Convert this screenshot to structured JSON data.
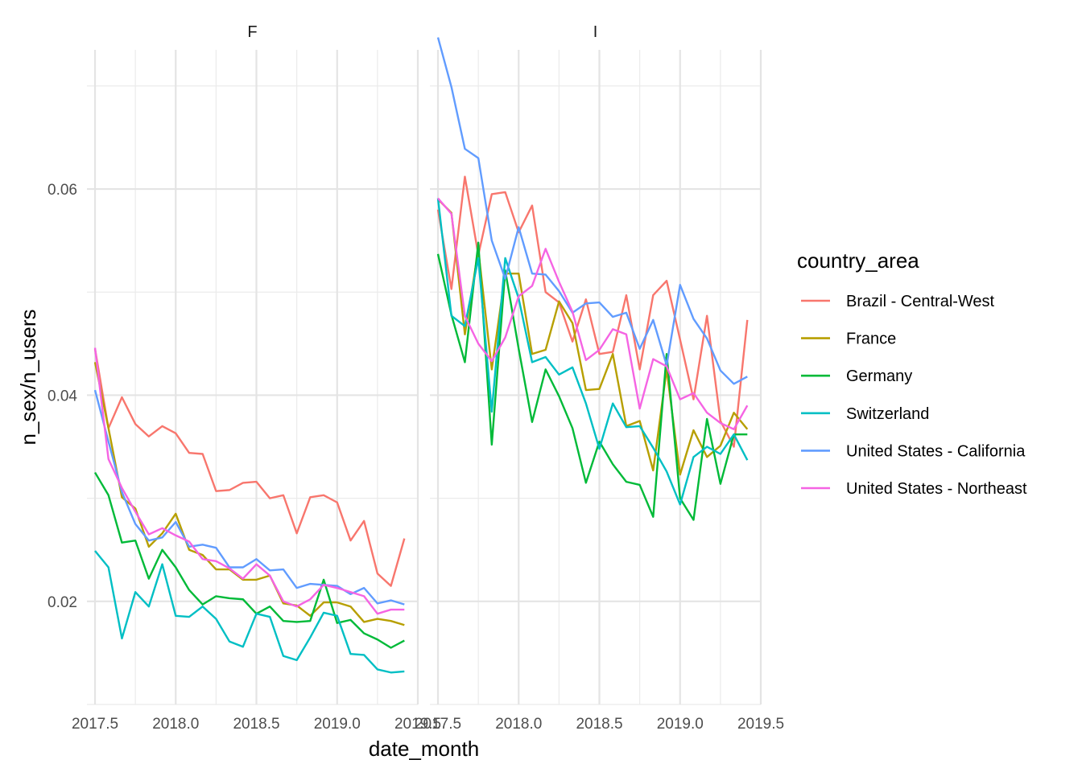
{
  "chart_data": {
    "type": "line",
    "xlabel": "date_month",
    "ylabel": "n_sex/n_users",
    "xlim": [
      2017.45,
      2019.5
    ],
    "ylim": [
      0.01,
      0.0735
    ],
    "x_ticks": [
      2017.5,
      2018.0,
      2018.5,
      2019.0,
      2019.5
    ],
    "x_tick_labels": [
      "2017.5",
      "2018.0",
      "2018.5",
      "2019.0",
      "2019.5"
    ],
    "y_ticks": [
      0.02,
      0.04,
      0.06
    ],
    "y_tick_labels": [
      "0.02",
      "0.04",
      "0.06"
    ],
    "grid": true,
    "legend": {
      "title": "country_area",
      "placement": "right"
    },
    "x": [
      2017.5,
      2017.5833,
      2017.6667,
      2017.75,
      2017.8333,
      2017.9167,
      2018.0,
      2018.0833,
      2018.1667,
      2018.25,
      2018.3333,
      2018.4167,
      2018.5,
      2018.5833,
      2018.6667,
      2018.75,
      2018.8333,
      2018.9167,
      2019.0,
      2019.0833,
      2019.1667,
      2019.25,
      2019.3333,
      2019.4167
    ],
    "facets": [
      {
        "label": "F",
        "series": [
          {
            "name": "Brazil - Central-West",
            "color": "#F8766D",
            "values": [
              0.0445,
              0.0368,
              0.0398,
              0.0372,
              0.036,
              0.037,
              0.0363,
              0.0344,
              0.0343,
              0.0307,
              0.0308,
              0.0315,
              0.0316,
              0.03,
              0.0303,
              0.0266,
              0.0301,
              0.0303,
              0.0296,
              0.0259,
              0.0278,
              0.0227,
              0.0215,
              0.0261
            ]
          },
          {
            "name": "France",
            "color": "#B79F00",
            "values": [
              0.0432,
              0.0368,
              0.0301,
              0.029,
              0.0253,
              0.0266,
              0.0285,
              0.025,
              0.0245,
              0.0231,
              0.0231,
              0.0221,
              0.0221,
              0.0225,
              0.0198,
              0.0196,
              0.0186,
              0.0199,
              0.0199,
              0.0195,
              0.018,
              0.0183,
              0.0181,
              0.0177
            ]
          },
          {
            "name": "Germany",
            "color": "#00BA38",
            "values": [
              0.0325,
              0.0303,
              0.0257,
              0.0259,
              0.0222,
              0.025,
              0.0233,
              0.0211,
              0.0197,
              0.0205,
              0.0203,
              0.0202,
              0.0188,
              0.0195,
              0.0181,
              0.018,
              0.0181,
              0.0221,
              0.0179,
              0.0182,
              0.0169,
              0.0163,
              0.0155,
              0.0162
            ]
          },
          {
            "name": "Switzerland",
            "color": "#00BFC4",
            "values": [
              0.0249,
              0.0233,
              0.0164,
              0.0209,
              0.0195,
              0.0236,
              0.0186,
              0.0185,
              0.0195,
              0.0183,
              0.0161,
              0.0156,
              0.0188,
              0.0185,
              0.0147,
              0.0143,
              0.0165,
              0.0189,
              0.0186,
              0.0149,
              0.0148,
              0.0134,
              0.0131,
              0.0132
            ]
          },
          {
            "name": "United States - California",
            "color": "#619CFF",
            "values": [
              0.0405,
              0.0355,
              0.0306,
              0.0275,
              0.0259,
              0.0262,
              0.0277,
              0.0253,
              0.0255,
              0.0252,
              0.0233,
              0.0233,
              0.0241,
              0.023,
              0.0231,
              0.0213,
              0.0217,
              0.0216,
              0.0215,
              0.0207,
              0.0213,
              0.0198,
              0.0201,
              0.0197
            ]
          },
          {
            "name": "United States - Northeast",
            "color": "#F564E3",
            "values": [
              0.0446,
              0.0338,
              0.031,
              0.0287,
              0.0265,
              0.0271,
              0.0264,
              0.0258,
              0.0241,
              0.0239,
              0.0232,
              0.0222,
              0.0236,
              0.0225,
              0.02,
              0.0195,
              0.0202,
              0.0216,
              0.0213,
              0.0209,
              0.0205,
              0.0188,
              0.0192,
              0.0192
            ]
          }
        ]
      },
      {
        "label": "I",
        "series": [
          {
            "name": "Brazil - Central-West",
            "color": "#F8766D",
            "values": [
              0.058,
              0.0503,
              0.0612,
              0.0536,
              0.0595,
              0.0597,
              0.0558,
              0.0584,
              0.05,
              0.049,
              0.0452,
              0.0493,
              0.044,
              0.0442,
              0.0497,
              0.0425,
              0.0497,
              0.0511,
              0.0454,
              0.0396,
              0.0477,
              0.0375,
              0.035,
              0.0473
            ]
          },
          {
            "name": "France",
            "color": "#B79F00",
            "values": [
              0.059,
              0.0577,
              0.0459,
              0.0541,
              0.0425,
              0.0518,
              0.0518,
              0.044,
              0.0444,
              0.0491,
              0.047,
              0.0405,
              0.0406,
              0.044,
              0.037,
              0.0375,
              0.0327,
              0.0425,
              0.0323,
              0.0366,
              0.034,
              0.0351,
              0.0383,
              0.0367
            ]
          },
          {
            "name": "Germany",
            "color": "#00BA38",
            "values": [
              0.0537,
              0.0478,
              0.0432,
              0.0548,
              0.0352,
              0.0521,
              0.0445,
              0.0374,
              0.0425,
              0.0399,
              0.0368,
              0.0315,
              0.0355,
              0.0333,
              0.0316,
              0.0313,
              0.0282,
              0.044,
              0.03,
              0.0279,
              0.0377,
              0.0314,
              0.0362,
              0.0362
            ]
          },
          {
            "name": "Switzerland",
            "color": "#00BFC4",
            "values": [
              0.0591,
              0.0477,
              0.0467,
              0.0533,
              0.0384,
              0.0533,
              0.0494,
              0.0432,
              0.0437,
              0.042,
              0.0427,
              0.0392,
              0.0348,
              0.0392,
              0.0369,
              0.037,
              0.0349,
              0.0326,
              0.0294,
              0.034,
              0.035,
              0.0343,
              0.0362,
              0.0337
            ]
          },
          {
            "name": "United States - California",
            "color": "#619CFF",
            "values": [
              0.0747,
              0.0699,
              0.0639,
              0.063,
              0.055,
              0.0513,
              0.0563,
              0.0518,
              0.0517,
              0.0501,
              0.048,
              0.0489,
              0.049,
              0.0476,
              0.048,
              0.0445,
              0.0473,
              0.0429,
              0.0507,
              0.0474,
              0.0455,
              0.0424,
              0.0411,
              0.0418
            ]
          },
          {
            "name": "United States - Northeast",
            "color": "#F564E3",
            "values": [
              0.0591,
              0.0576,
              0.0477,
              0.045,
              0.0433,
              0.0456,
              0.0496,
              0.0506,
              0.0542,
              0.051,
              0.0481,
              0.0434,
              0.0444,
              0.0464,
              0.0459,
              0.0387,
              0.0435,
              0.0428,
              0.0396,
              0.0402,
              0.0383,
              0.0373,
              0.0367,
              0.039
            ]
          }
        ]
      }
    ]
  }
}
